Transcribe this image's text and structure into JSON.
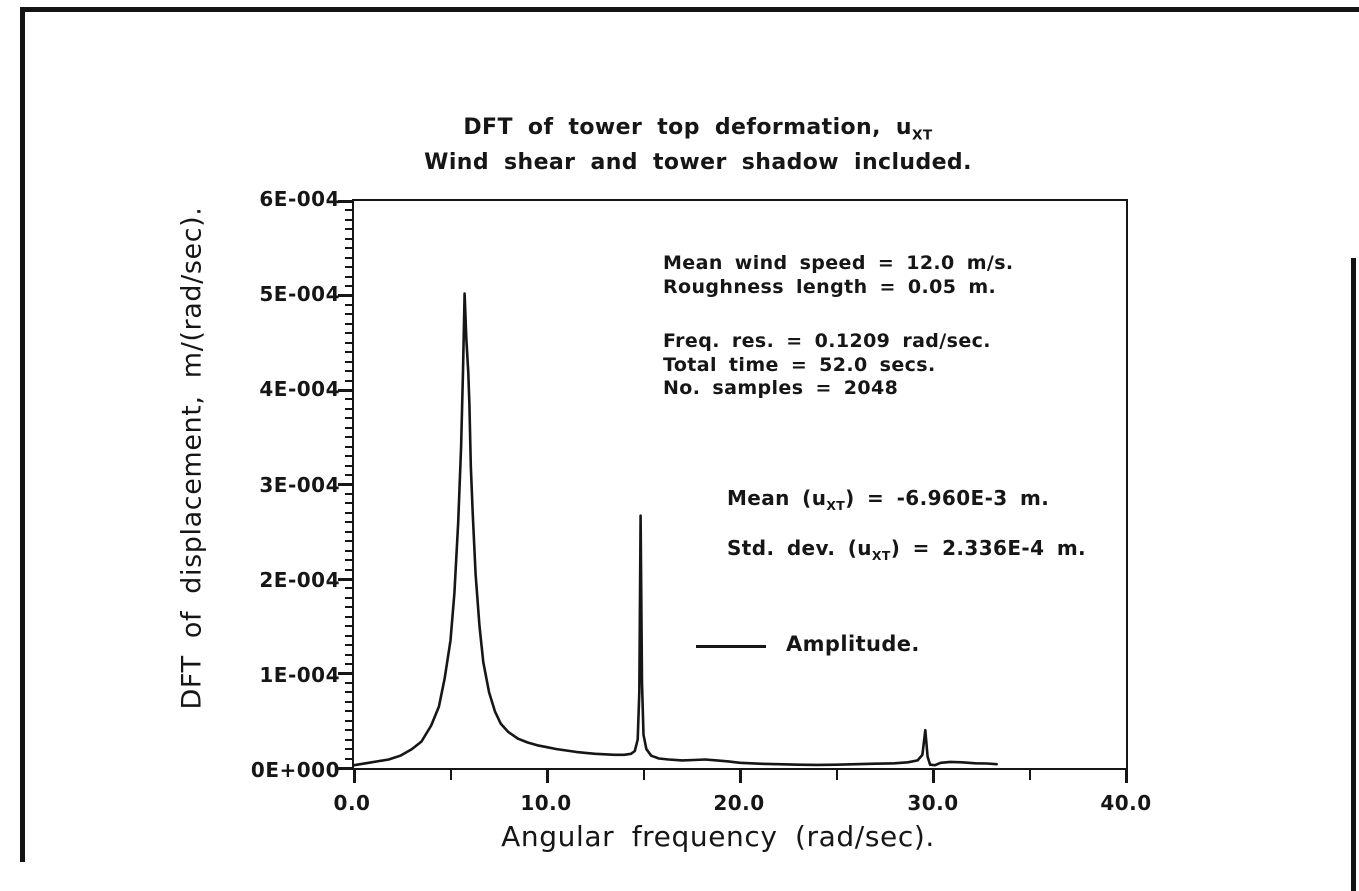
{
  "page": {
    "background": "#ffffff",
    "ink_color": "#161616"
  },
  "chart": {
    "title_line1_prefix": "DFT of tower top deformation, u",
    "title_line1_sub": "XT",
    "title_line2": "Wind shear and tower shadow included.",
    "xlabel": "Angular frequency (rad/sec).",
    "ylabel": "DFT of displacement, m/(rad/sec).",
    "legend": {
      "label": "Amplitude."
    },
    "annotations": {
      "wind": [
        "Mean wind speed = 12.0 m/s.",
        "Roughness length = 0.05 m."
      ],
      "sampling": [
        "Freq. res. = 0.1209 rad/sec.",
        "Total time = 52.0 secs.",
        "No. samples = 2048"
      ],
      "mean_prefix": "Mean (u",
      "mean_sub": "XT",
      "mean_suffix": ") = -6.960E-3 m.",
      "std_prefix": "Std. dev. (u",
      "std_sub": "XT",
      "std_suffix": ") = 2.336E-4 m."
    }
  },
  "chart_data": {
    "type": "line",
    "title": "DFT of tower top deformation, u_XT. Wind shear and tower shadow included.",
    "xlabel": "Angular frequency (rad/sec).",
    "ylabel": "DFT of displacement, m/(rad/sec).",
    "xlim": [
      0,
      40
    ],
    "ylim": [
      0,
      0.0006
    ],
    "grid": false,
    "legend_position": "center-right",
    "x_tick_labels": [
      "0.0",
      "10.0",
      "20.0",
      "30.0",
      "40.0"
    ],
    "y_tick_labels": [
      "0E+000",
      "1E-004",
      "2E-004",
      "3E-004",
      "4E-004",
      "5E-004",
      "6E-004"
    ],
    "x_major_ticks": [
      0,
      10,
      20,
      30,
      40
    ],
    "x_minor_ticks": [
      5,
      15,
      25,
      35
    ],
    "y_major_ticks_e4": [
      0,
      1,
      2,
      3,
      4,
      5,
      6
    ],
    "y_minor_step_e4": 0.1,
    "y_unit_factor": 0.0001,
    "peaks": [
      {
        "omega_rad_per_sec": 5.73,
        "amplitude": "5.0E-004"
      },
      {
        "omega_rad_per_sec": 14.85,
        "amplitude": "2.67E-004"
      },
      {
        "omega_rad_per_sec": 29.6,
        "amplitude": "4.0E-005"
      }
    ],
    "series": [
      {
        "name": "Amplitude.",
        "points_omega_vs_amplitude_e4": [
          [
            0,
            0.03
          ],
          [
            0.6,
            0.05
          ],
          [
            1.2,
            0.07
          ],
          [
            1.8,
            0.09
          ],
          [
            2.4,
            0.13
          ],
          [
            3.0,
            0.2
          ],
          [
            3.5,
            0.28
          ],
          [
            4.0,
            0.45
          ],
          [
            4.4,
            0.65
          ],
          [
            4.7,
            0.95
          ],
          [
            5.0,
            1.35
          ],
          [
            5.2,
            1.85
          ],
          [
            5.4,
            2.6
          ],
          [
            5.55,
            3.4
          ],
          [
            5.65,
            4.2
          ],
          [
            5.73,
            5.02
          ],
          [
            5.82,
            4.55
          ],
          [
            5.92,
            4.18
          ],
          [
            5.98,
            3.85
          ],
          [
            6.05,
            3.2
          ],
          [
            6.15,
            2.7
          ],
          [
            6.3,
            2.05
          ],
          [
            6.5,
            1.5
          ],
          [
            6.7,
            1.12
          ],
          [
            7.0,
            0.8
          ],
          [
            7.3,
            0.6
          ],
          [
            7.6,
            0.47
          ],
          [
            8.0,
            0.38
          ],
          [
            8.5,
            0.31
          ],
          [
            9.0,
            0.27
          ],
          [
            9.5,
            0.24
          ],
          [
            10.0,
            0.22
          ],
          [
            10.5,
            0.2
          ],
          [
            11.0,
            0.185
          ],
          [
            11.5,
            0.17
          ],
          [
            12.0,
            0.16
          ],
          [
            12.5,
            0.15
          ],
          [
            13.0,
            0.145
          ],
          [
            13.5,
            0.14
          ],
          [
            14.0,
            0.14
          ],
          [
            14.35,
            0.15
          ],
          [
            14.55,
            0.18
          ],
          [
            14.7,
            0.3
          ],
          [
            14.78,
            0.8
          ],
          [
            14.85,
            2.67
          ],
          [
            14.92,
            0.9
          ],
          [
            15.0,
            0.35
          ],
          [
            15.15,
            0.2
          ],
          [
            15.4,
            0.13
          ],
          [
            15.8,
            0.1
          ],
          [
            16.3,
            0.09
          ],
          [
            17.0,
            0.08
          ],
          [
            17.6,
            0.085
          ],
          [
            18.2,
            0.09
          ],
          [
            18.8,
            0.08
          ],
          [
            19.4,
            0.07
          ],
          [
            20.0,
            0.055
          ],
          [
            21.0,
            0.045
          ],
          [
            22.0,
            0.04
          ],
          [
            23.0,
            0.035
          ],
          [
            24.0,
            0.033
          ],
          [
            25.0,
            0.035
          ],
          [
            26.0,
            0.04
          ],
          [
            27.0,
            0.045
          ],
          [
            28.0,
            0.05
          ],
          [
            28.7,
            0.06
          ],
          [
            29.2,
            0.08
          ],
          [
            29.45,
            0.14
          ],
          [
            29.6,
            0.4
          ],
          [
            29.72,
            0.12
          ],
          [
            29.85,
            0.035
          ],
          [
            30.1,
            0.03
          ],
          [
            30.4,
            0.055
          ],
          [
            30.9,
            0.065
          ],
          [
            31.5,
            0.06
          ],
          [
            32.2,
            0.05
          ],
          [
            32.8,
            0.048
          ],
          [
            33.3,
            0.04
          ]
        ]
      }
    ]
  }
}
